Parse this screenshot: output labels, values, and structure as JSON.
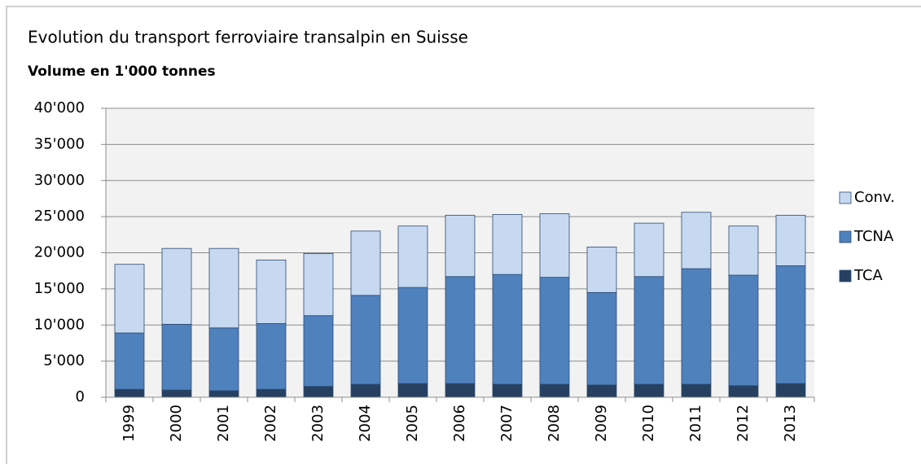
{
  "chart_data": {
    "type": "stacked_bar",
    "title": "Evolution du transport ferroviaire transalpin en Suisse",
    "subtitle": "Volume en 1'000 tonnes",
    "categories": [
      "1999",
      "2000",
      "2001",
      "2002",
      "2003",
      "2004",
      "2005",
      "2006",
      "2007",
      "2008",
      "2009",
      "2010",
      "2011",
      "2012",
      "2013"
    ],
    "series": [
      {
        "name": "TCA",
        "color": "#254061",
        "values": [
          1100,
          1000,
          900,
          1100,
          1500,
          1800,
          1900,
          1900,
          1800,
          1800,
          1700,
          1800,
          1800,
          1600,
          1900
        ]
      },
      {
        "name": "TCNA",
        "color": "#4f81bd",
        "values": [
          7800,
          9100,
          8700,
          9100,
          9800,
          12300,
          13300,
          14800,
          15200,
          14800,
          12800,
          14900,
          16000,
          15300,
          16300
        ]
      },
      {
        "name": "Conv.",
        "color": "#c6d9f1",
        "values": [
          9500,
          10500,
          11000,
          8800,
          8600,
          8900,
          8500,
          8500,
          8300,
          8800,
          6300,
          7400,
          7800,
          6800,
          7000
        ]
      }
    ],
    "ylim": [
      0,
      40000
    ],
    "yticks": [
      0,
      {
        "value": 5000,
        "label": "5'000"
      },
      {
        "value": 10000,
        "label": "10'000"
      },
      {
        "value": 15000,
        "label": "15'000"
      },
      {
        "value": 20000,
        "label": "20'000"
      },
      {
        "value": 25000,
        "label": "25'000"
      },
      {
        "value": 30000,
        "label": "30'000"
      },
      {
        "value": 35000,
        "label": "35'000"
      },
      {
        "value": 40000,
        "label": "40'000"
      }
    ],
    "grid": true,
    "legend": "right"
  }
}
